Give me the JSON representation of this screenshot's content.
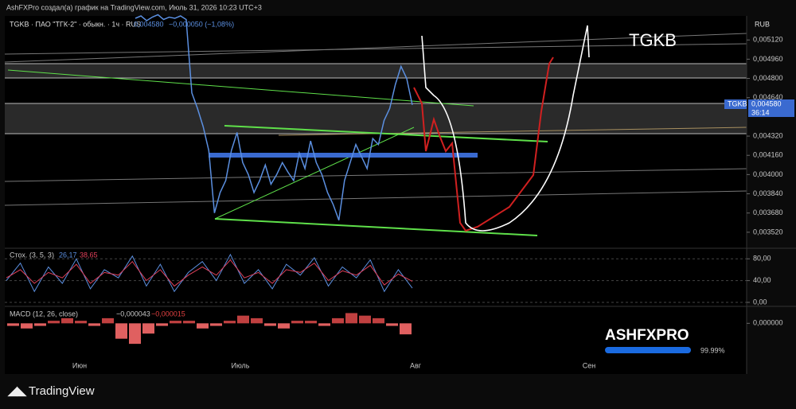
{
  "header": {
    "caption": "AshFXPro создал(а) график на TradingView.com, Июль 31, 2026 10:23 UTC+3",
    "symbol_line": "TGKB · ПАО \"ТГК-2\" · обыкн. · 1ч · RUS",
    "price": "0,004580",
    "change": "−0,000050 (−1,08%)"
  },
  "currency": "RUB",
  "annotation": "TGKB",
  "price_tag": {
    "symbol": "TGKB",
    "price": "0,004580",
    "timer": "36:14"
  },
  "time_axis": {
    "labels": [
      "Июн",
      "Июль",
      "Авг",
      "Сен"
    ]
  },
  "watermark": {
    "title": "ASHFXPRO",
    "percent": "99.99%"
  },
  "footer": {
    "brand": "TradingView"
  },
  "chart_data": [
    {
      "type": "line",
      "series": [
        {
          "color": "#5b8fe0",
          "values": [
            0.0053,
            0.00532,
            0.00528,
            0.00531,
            0.00533,
            0.00529,
            0.00531,
            0.0053,
            0.00532,
            0.00529,
            0.00468,
            0.00455,
            0.0044,
            0.0042,
            0.00368,
            0.00385,
            0.00395,
            0.0042,
            0.00435,
            0.0041,
            0.004,
            0.00385,
            0.00395,
            0.00408,
            0.00392,
            0.004,
            0.0041,
            0.00402,
            0.00395,
            0.00418,
            0.00405,
            0.00428,
            0.0041,
            0.004,
            0.00385,
            0.00375,
            0.00362,
            0.00395,
            0.0041,
            0.00425,
            0.00415,
            0.00405,
            0.0043,
            0.00425,
            0.00445,
            0.00455,
            0.00475,
            0.0049,
            0.0048,
            0.00458
          ]
        }
      ],
      "ylim": [
        0.0034,
        0.00532
      ],
      "yticks": [
        {
          "value": 0.00512,
          "label": "0,005120"
        },
        {
          "value": 0.00496,
          "label": "0,004960"
        },
        {
          "value": 0.0048,
          "label": "0,004800"
        },
        {
          "value": 0.00464,
          "label": "0,004640"
        },
        {
          "value": 0.00432,
          "label": "0,004320"
        },
        {
          "value": 0.00416,
          "label": "0,004160"
        },
        {
          "value": 0.004,
          "label": "0,004000"
        },
        {
          "value": 0.00384,
          "label": "0,003840"
        },
        {
          "value": 0.00368,
          "label": "0,003680"
        },
        {
          "value": 0.00352,
          "label": "0,003520"
        }
      ]
    },
    {
      "type": "line",
      "title": "Стох. (3, 5, 3)",
      "series": [
        {
          "color": "#5b8fe0",
          "last_label": "26,17",
          "values": [
            40,
            72,
            20,
            65,
            35,
            80,
            25,
            60,
            45,
            85,
            30,
            70,
            20,
            55,
            75,
            40,
            88,
            35,
            60,
            25,
            70,
            50,
            82,
            30,
            65,
            45,
            78,
            20,
            60,
            26.17
          ]
        },
        {
          "color": "#e0405a",
          "last_label": "38,65",
          "values": [
            45,
            60,
            35,
            55,
            45,
            70,
            35,
            55,
            50,
            75,
            40,
            60,
            30,
            50,
            65,
            50,
            78,
            45,
            55,
            35,
            60,
            55,
            72,
            40,
            58,
            50,
            68,
            32,
            52,
            38.65
          ]
        }
      ],
      "ylim": [
        0,
        95
      ],
      "yticks": [
        {
          "value": 0,
          "label": "0,00"
        },
        {
          "value": 40,
          "label": "40,00"
        },
        {
          "value": 80,
          "label": "80,00"
        }
      ]
    },
    {
      "type": "bar",
      "title": "MACD (12, 26, close)",
      "macd_label": "−0,000043",
      "signal_label": "−0,000015",
      "values": [
        -1e-05,
        -2e-05,
        -1e-05,
        1e-05,
        2e-05,
        1e-05,
        -1e-05,
        2e-05,
        -6e-05,
        -8e-05,
        -4e-05,
        -1e-05,
        1e-05,
        1e-05,
        -2e-05,
        -1e-05,
        1e-05,
        3e-05,
        2e-05,
        -1e-05,
        -2e-05,
        1e-05,
        1e-05,
        -1e-05,
        2e-05,
        4e-05,
        3e-05,
        2e-05,
        -1e-05,
        -4.3e-05
      ],
      "ylim": [
        -0.00012,
        6e-05
      ],
      "yticks": [
        {
          "value": 0,
          "label": "0,000000"
        }
      ]
    }
  ]
}
